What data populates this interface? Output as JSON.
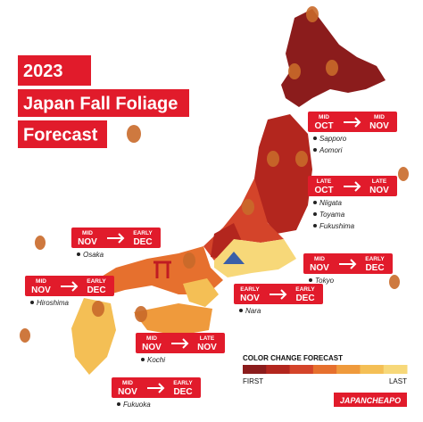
{
  "header": {
    "lines": [
      "2023",
      "Japan Fall Foliage",
      "Forecast"
    ]
  },
  "callouts": [
    {
      "start": [
        "MID",
        "OCT"
      ],
      "end": [
        "MID",
        "NOV"
      ],
      "cities": [
        "Sapporo",
        "Aomori"
      ]
    },
    {
      "start": [
        "LATE",
        "OCT"
      ],
      "end": [
        "LATE",
        "NOV"
      ],
      "cities": [
        "Niigata",
        "Toyama",
        "Fukushima"
      ]
    },
    {
      "start": [
        "MID",
        "NOV"
      ],
      "end": [
        "EARLY",
        "DEC"
      ],
      "cities": [
        "Osaka"
      ]
    },
    {
      "start": [
        "MID",
        "NOV"
      ],
      "end": [
        "EARLY",
        "DEC"
      ],
      "cities": [
        "Tokyo"
      ]
    },
    {
      "start": [
        "MID",
        "NOV"
      ],
      "end": [
        "EARLY",
        "DEC"
      ],
      "cities": [
        "Hiroshima"
      ]
    },
    {
      "start": [
        "EARLY",
        "NOV"
      ],
      "end": [
        "EARLY",
        "DEC"
      ],
      "cities": [
        "Nara"
      ]
    },
    {
      "start": [
        "MID",
        "NOV"
      ],
      "end": [
        "LATE",
        "NOV"
      ],
      "cities": [
        "Kochi"
      ]
    },
    {
      "start": [
        "MID",
        "NOV"
      ],
      "end": [
        "EARLY",
        "DEC"
      ],
      "cities": [
        "Fukuoka"
      ]
    }
  ],
  "legend": {
    "title": "COLOR CHANGE FORECAST",
    "colors": [
      "#8b1c1c",
      "#b3261e",
      "#d4442a",
      "#e6702e",
      "#ef9a3c",
      "#f4bf55",
      "#f7d879"
    ],
    "first": "FIRST",
    "last": "LAST"
  },
  "brand": "JAPANCHEAPO"
}
